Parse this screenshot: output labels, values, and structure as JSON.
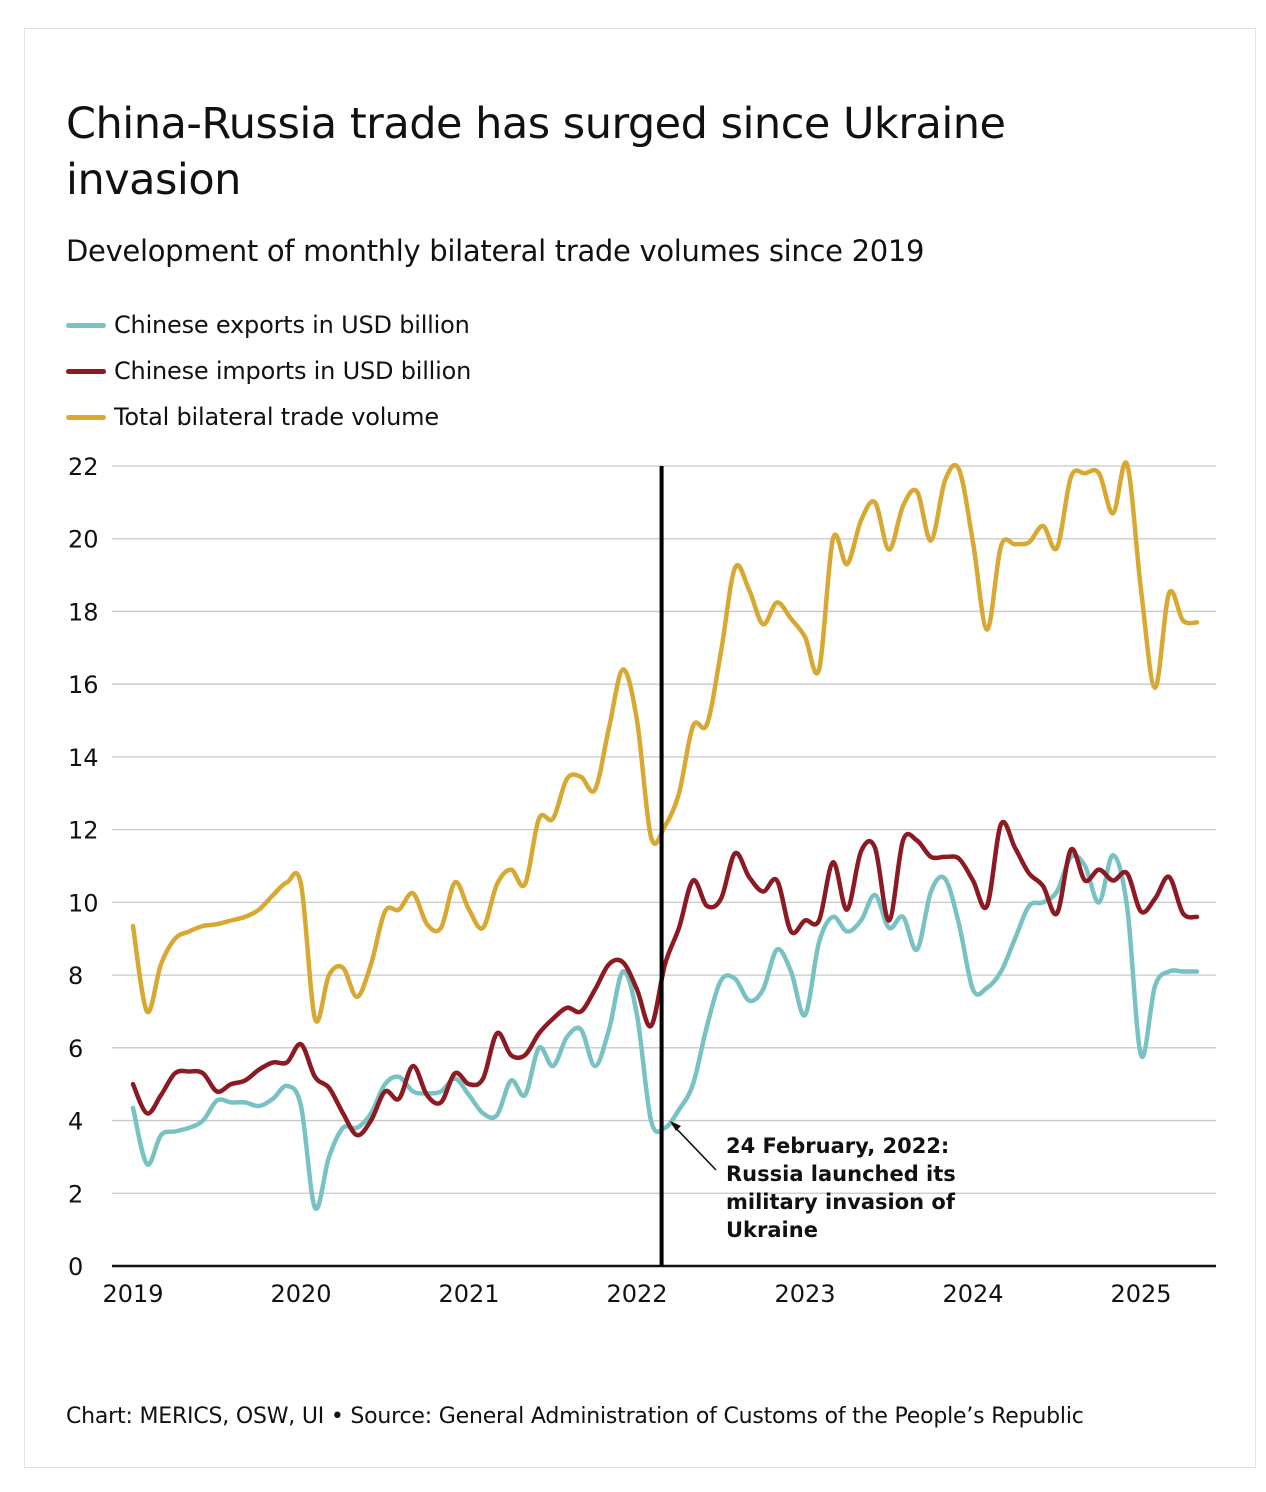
{
  "page": {
    "title": "China-Russia trade has surged since Ukraine invasion",
    "subtitle": "Development of monthly bilateral trade volumes since 2019",
    "footer": "Chart: MERICS, OSW, UI • Source: General Administration of Customs of the People’s Republic"
  },
  "colors": {
    "exports": "#79c2c3",
    "imports": "#8b1a22",
    "total": "#d8a932",
    "grid": "#c8c8c8",
    "axis": "#111111"
  },
  "chart_data": {
    "type": "line",
    "title": "China-Russia trade has surged since Ukraine invasion",
    "subtitle": "Development of monthly bilateral trade volumes since 2019",
    "x_start": "2019-01",
    "xlim": [
      "2019-01",
      "2025-05"
    ],
    "x_ticks": [
      "2019",
      "2020",
      "2021",
      "2022",
      "2023",
      "2024",
      "2025"
    ],
    "ylim": [
      0,
      22
    ],
    "y_ticks": [
      0,
      2,
      4,
      6,
      8,
      10,
      12,
      14,
      16,
      18,
      20,
      22
    ],
    "grid": true,
    "legend_position": "top-left",
    "series": [
      {
        "name": "Chinese exports in USD billion",
        "color": "#79c2c3",
        "values": [
          4.35,
          2.8,
          3.6,
          3.7,
          3.8,
          4.0,
          4.55,
          4.5,
          4.5,
          4.4,
          4.6,
          4.95,
          4.4,
          1.6,
          3.0,
          3.8,
          3.8,
          4.2,
          5.0,
          5.2,
          4.8,
          4.75,
          4.8,
          5.15,
          4.7,
          4.2,
          4.15,
          5.1,
          4.7,
          6.0,
          5.5,
          6.3,
          6.5,
          5.5,
          6.5,
          8.1,
          6.9,
          4.0,
          3.8,
          4.3,
          5.0,
          6.6,
          7.85,
          7.9,
          7.3,
          7.6,
          8.7,
          8.1,
          6.9,
          8.9,
          9.6,
          9.2,
          9.5,
          10.2,
          9.3,
          9.6,
          8.7,
          10.3,
          10.65,
          9.4,
          7.6,
          7.65,
          8.1,
          9.0,
          9.9,
          10.0,
          10.3,
          11.25,
          11.0,
          10.0,
          11.3,
          9.9,
          5.8,
          7.7,
          8.1,
          8.1,
          8.1
        ],
        "values_start": "2019-01"
      },
      {
        "name": "Chinese imports in USD billion",
        "color": "#8b1a22",
        "values": [
          5.0,
          4.2,
          4.7,
          5.3,
          5.35,
          5.3,
          4.8,
          5.0,
          5.1,
          5.4,
          5.6,
          5.6,
          6.1,
          5.2,
          4.9,
          4.2,
          3.6,
          4.0,
          4.8,
          4.6,
          5.5,
          4.7,
          4.5,
          5.3,
          5.0,
          5.15,
          6.4,
          5.8,
          5.8,
          6.4,
          6.8,
          7.1,
          7.0,
          7.6,
          8.3,
          8.35,
          7.6,
          6.6,
          8.3,
          9.3,
          10.6,
          9.9,
          10.1,
          11.35,
          10.7,
          10.3,
          10.6,
          9.2,
          9.5,
          9.5,
          11.1,
          9.8,
          11.4,
          11.5,
          9.5,
          11.7,
          11.7,
          11.25,
          11.25,
          11.2,
          10.6,
          9.9,
          12.15,
          11.5,
          10.8,
          10.45,
          9.7,
          11.45,
          10.6,
          10.9,
          10.6,
          10.8,
          9.75,
          10.1,
          10.7,
          9.7,
          9.6
        ],
        "values_start": "2019-01"
      },
      {
        "name": "Total bilateral trade volume",
        "color": "#d8a932",
        "values": [
          9.35,
          7.0,
          8.3,
          9.0,
          9.2,
          9.35,
          9.4,
          9.5,
          9.6,
          9.8,
          10.2,
          10.55,
          10.5,
          6.8,
          8.0,
          8.2,
          7.4,
          8.3,
          9.75,
          9.8,
          10.25,
          9.4,
          9.3,
          10.55,
          9.8,
          9.3,
          10.5,
          10.9,
          10.5,
          12.3,
          12.3,
          13.4,
          13.45,
          13.1,
          14.8,
          16.4,
          15.0,
          11.8,
          12.1,
          13.0,
          14.85,
          14.9,
          16.9,
          19.2,
          18.6,
          17.65,
          18.25,
          17.8,
          17.3,
          16.4,
          20.0,
          19.3,
          20.5,
          21.0,
          19.7,
          20.9,
          21.3,
          19.95,
          21.6,
          21.9,
          19.9,
          17.5,
          19.8,
          19.85,
          19.9,
          20.35,
          19.75,
          21.7,
          21.8,
          21.8,
          20.7,
          22.05,
          18.6,
          15.9,
          18.5,
          17.75,
          17.7
        ],
        "values_start": "2019-01"
      }
    ],
    "annotation": {
      "date": "2022-02-24",
      "lines": [
        "24 February, 2022:",
        "Russia launched its",
        "military invasion of",
        "Ukraine"
      ]
    }
  }
}
